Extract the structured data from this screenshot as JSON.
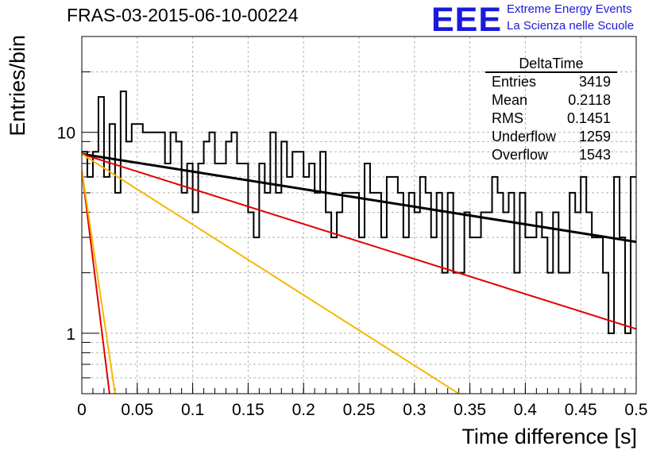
{
  "header": {
    "title": "FRAS-03-2015-06-10-00224",
    "logo": "EEE",
    "logo_line1": "Extreme Energy Events",
    "logo_line2": "La Scienza nelle Scuole"
  },
  "stats_box": {
    "title": "DeltaTime",
    "rows": [
      {
        "label": "Entries",
        "value": "3419"
      },
      {
        "label": "Mean",
        "value": "0.2118"
      },
      {
        "label": "RMS",
        "value": "0.1451"
      },
      {
        "label": "Underflow",
        "value": "1259"
      },
      {
        "label": "Overflow",
        "value": "1543"
      }
    ]
  },
  "chart_data": {
    "type": "line",
    "xlabel": "Time difference [s]",
    "ylabel": "Entries/bin",
    "xlim": [
      0,
      0.5
    ],
    "ylim": [
      0.5,
      30
    ],
    "yscale": "log",
    "grid": true,
    "x_ticks": [
      "0",
      "0.05",
      "0.1",
      "0.15",
      "0.2",
      "0.25",
      "0.3",
      "0.35",
      "0.4",
      "0.45",
      "0.5"
    ],
    "y_ticks": [
      "1",
      "10"
    ],
    "histogram": {
      "bin_width": 0.005,
      "counts": [
        8,
        6,
        8,
        15,
        6,
        11,
        5,
        16,
        9,
        11,
        11,
        10,
        10,
        10,
        10,
        7,
        10,
        9,
        5,
        7,
        4,
        7,
        9,
        10,
        7,
        7,
        9,
        10,
        7,
        7,
        4,
        3,
        7,
        5,
        10,
        5,
        9,
        6,
        8,
        8,
        6,
        7,
        5,
        8,
        4,
        3,
        4,
        5,
        5,
        5,
        3,
        7,
        5,
        5,
        3,
        6,
        6,
        5,
        3,
        5,
        4,
        6,
        5,
        3,
        5,
        2,
        5,
        2,
        2,
        4,
        3,
        3,
        4,
        4,
        6,
        5,
        4,
        5,
        2,
        5,
        3,
        3,
        4,
        3,
        2,
        4,
        2,
        2,
        5,
        4,
        6,
        4,
        3,
        3,
        2,
        1,
        6,
        3,
        1,
        6
      ]
    },
    "series": [
      {
        "color": "#000000",
        "x": [
          0,
          0.5
        ],
        "y": [
          7.8,
          2.85
        ]
      },
      {
        "color": "#e00000",
        "x": [
          0,
          0.5
        ],
        "y": [
          7.8,
          1.05
        ]
      },
      {
        "color": "#f5b800",
        "x": [
          0,
          0.34
        ],
        "y": [
          7.8,
          0.5
        ]
      },
      {
        "color": "#e00000",
        "x": [
          0,
          0.025
        ],
        "y": [
          6.5,
          0.5
        ]
      },
      {
        "color": "#f5b800",
        "x": [
          0,
          0.03
        ],
        "y": [
          6.5,
          0.5
        ]
      }
    ]
  }
}
